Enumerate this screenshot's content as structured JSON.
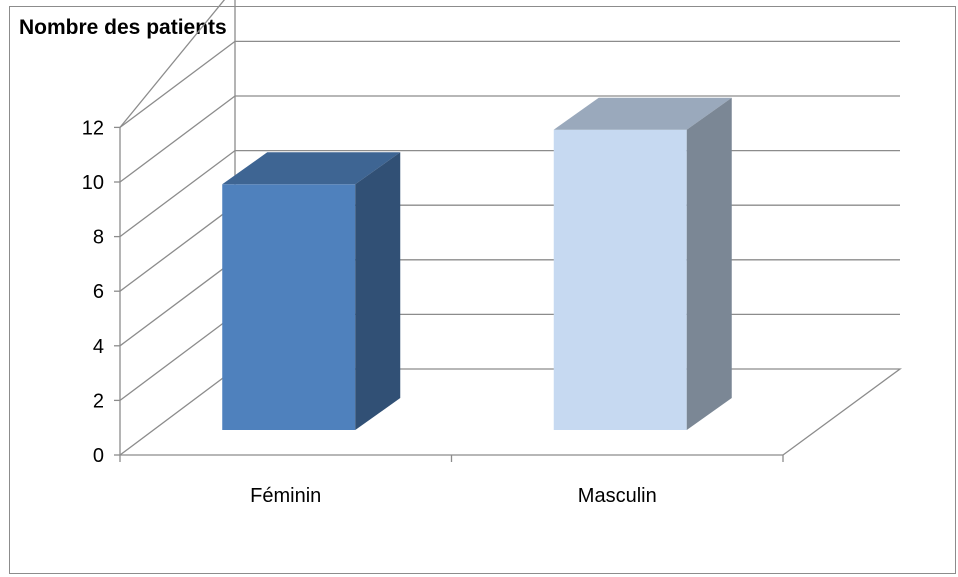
{
  "chart_data": {
    "type": "bar",
    "title": "Nombre des patients",
    "categories": [
      "Féminin",
      "Masculin"
    ],
    "values": [
      9,
      11
    ],
    "colors": [
      "#4f81bd",
      "#c6d9f1"
    ],
    "ylim": [
      0,
      12
    ],
    "yticks": [
      0,
      2,
      4,
      6,
      8,
      10,
      12
    ],
    "ytick_labels": [
      "0",
      "2",
      "4",
      "6",
      "8",
      "10",
      "12"
    ],
    "grid": true,
    "style": "3d-column"
  }
}
